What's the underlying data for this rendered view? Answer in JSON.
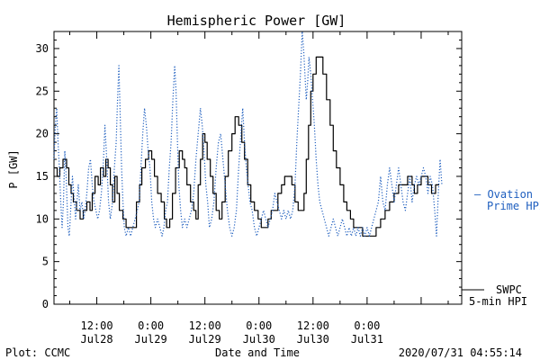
{
  "chart_data": {
    "type": "line",
    "title": "Hemispheric Power [GW]",
    "ylabel": "P [GW]",
    "xlabel": "Date and Time",
    "ylim": [
      0,
      32
    ],
    "yticks": [
      0,
      5,
      10,
      15,
      20,
      25,
      30
    ],
    "x_range_hours": [
      2.5,
      93.0
    ],
    "xticks": [
      {
        "hour": 12,
        "time": "12:00",
        "date": "Jul28"
      },
      {
        "hour": 24,
        "time": "0:00",
        "date": "Jul29"
      },
      {
        "hour": 36,
        "time": "12:00",
        "date": "Jul29"
      },
      {
        "hour": 48,
        "time": "0:00",
        "date": "Jul30"
      },
      {
        "hour": 60,
        "time": "12:00",
        "date": "Jul30"
      },
      {
        "hour": 72,
        "time": "0:00",
        "date": "Jul31"
      }
    ],
    "grid": false,
    "series": [
      {
        "name": "SWPC 5-min HPI",
        "label_lines": [
          "SWPC",
          "5-min HPI"
        ],
        "color": "#000000",
        "style": "solid",
        "points": [
          [
            2.5,
            16
          ],
          [
            3.2,
            15
          ],
          [
            3.8,
            16
          ],
          [
            4.5,
            17
          ],
          [
            5.3,
            16
          ],
          [
            5.8,
            14
          ],
          [
            6.3,
            13
          ],
          [
            6.8,
            12
          ],
          [
            7.5,
            11
          ],
          [
            8.3,
            10
          ],
          [
            9,
            11
          ],
          [
            9.8,
            12
          ],
          [
            10.5,
            11
          ],
          [
            11,
            13
          ],
          [
            11.6,
            15
          ],
          [
            12.3,
            14
          ],
          [
            12.8,
            16
          ],
          [
            13.5,
            15
          ],
          [
            14,
            17
          ],
          [
            14.5,
            16
          ],
          [
            15,
            14
          ],
          [
            15.5,
            12
          ],
          [
            16,
            15
          ],
          [
            16.5,
            13
          ],
          [
            17,
            11
          ],
          [
            17.8,
            10
          ],
          [
            18.5,
            9
          ],
          [
            19.3,
            9
          ],
          [
            20,
            9
          ],
          [
            20.8,
            12
          ],
          [
            21.5,
            14
          ],
          [
            22,
            16
          ],
          [
            22.8,
            17
          ],
          [
            23.5,
            18
          ],
          [
            24.2,
            17
          ],
          [
            24.8,
            15
          ],
          [
            25.5,
            13
          ],
          [
            26.3,
            12
          ],
          [
            27,
            10
          ],
          [
            27.5,
            9
          ],
          [
            28.2,
            10
          ],
          [
            28.8,
            13
          ],
          [
            29.5,
            16
          ],
          [
            30.3,
            18
          ],
          [
            31,
            17
          ],
          [
            31.5,
            16
          ],
          [
            32,
            14
          ],
          [
            32.8,
            12
          ],
          [
            33.5,
            11
          ],
          [
            34,
            10
          ],
          [
            34.5,
            14
          ],
          [
            35,
            17
          ],
          [
            35.5,
            20
          ],
          [
            36,
            19
          ],
          [
            36.5,
            17
          ],
          [
            37.2,
            15
          ],
          [
            37.8,
            13
          ],
          [
            38.5,
            11
          ],
          [
            39.2,
            10
          ],
          [
            39.8,
            12
          ],
          [
            40.5,
            15
          ],
          [
            41.2,
            18
          ],
          [
            42,
            20
          ],
          [
            42.7,
            22
          ],
          [
            43.5,
            21
          ],
          [
            44.2,
            19
          ],
          [
            44.8,
            17
          ],
          [
            45.5,
            14
          ],
          [
            46.2,
            12
          ],
          [
            47,
            11
          ],
          [
            47.8,
            10
          ],
          [
            48.5,
            9
          ],
          [
            49.3,
            9
          ],
          [
            50,
            10
          ],
          [
            50.7,
            11
          ],
          [
            51.5,
            11
          ],
          [
            52.2,
            13
          ],
          [
            53,
            14
          ],
          [
            53.7,
            15
          ],
          [
            54.5,
            15
          ],
          [
            55.3,
            14
          ],
          [
            56,
            12
          ],
          [
            56.7,
            11
          ],
          [
            57.3,
            11
          ],
          [
            58,
            13
          ],
          [
            58.5,
            17
          ],
          [
            59,
            21
          ],
          [
            59.5,
            25
          ],
          [
            60,
            27
          ],
          [
            60.7,
            29
          ],
          [
            61.5,
            29
          ],
          [
            62.2,
            27
          ],
          [
            63,
            24
          ],
          [
            63.8,
            21
          ],
          [
            64.5,
            18
          ],
          [
            65.2,
            16
          ],
          [
            66,
            14
          ],
          [
            66.8,
            12
          ],
          [
            67.5,
            11
          ],
          [
            68.3,
            10
          ],
          [
            69,
            9
          ],
          [
            70,
            9
          ],
          [
            71,
            8
          ],
          [
            72,
            8
          ],
          [
            73,
            8
          ],
          [
            74,
            9
          ],
          [
            75,
            10
          ],
          [
            76,
            11
          ],
          [
            77,
            12
          ],
          [
            78,
            13
          ],
          [
            79,
            14
          ],
          [
            80,
            14
          ],
          [
            81,
            15
          ],
          [
            82,
            14
          ],
          [
            82.5,
            13
          ],
          [
            83.2,
            14
          ],
          [
            84,
            15
          ],
          [
            84.8,
            15
          ],
          [
            85.5,
            14
          ],
          [
            86.3,
            13
          ],
          [
            87.2,
            14
          ],
          [
            88,
            14
          ]
        ]
      },
      {
        "name": "Ovation Prime HPI",
        "label_lines": [
          "– Ovation",
          "Prime HPI"
        ],
        "color": "#1f5fbf",
        "style": "dotted",
        "points": [
          [
            2.5,
            17
          ],
          [
            2.8,
            21
          ],
          [
            3.1,
            23
          ],
          [
            3.4,
            19
          ],
          [
            3.7,
            16
          ],
          [
            4,
            12
          ],
          [
            4.3,
            9
          ],
          [
            4.6,
            12
          ],
          [
            4.9,
            18
          ],
          [
            5.2,
            15
          ],
          [
            5.6,
            9
          ],
          [
            5.9,
            8
          ],
          [
            6.2,
            11
          ],
          [
            6.6,
            15
          ],
          [
            6.9,
            13
          ],
          [
            7.3,
            10
          ],
          [
            7.6,
            12
          ],
          [
            7.9,
            14
          ],
          [
            8.3,
            11
          ],
          [
            8.7,
            12
          ],
          [
            9.1,
            10
          ],
          [
            9.4,
            11
          ],
          [
            9.8,
            13
          ],
          [
            10.2,
            16
          ],
          [
            10.6,
            17
          ],
          [
            11,
            14
          ],
          [
            11.4,
            12
          ],
          [
            11.8,
            11
          ],
          [
            12.2,
            10
          ],
          [
            12.6,
            11
          ],
          [
            13,
            13
          ],
          [
            13.4,
            16
          ],
          [
            13.8,
            21
          ],
          [
            14.2,
            17
          ],
          [
            14.6,
            12
          ],
          [
            15,
            10
          ],
          [
            15.5,
            12
          ],
          [
            15.9,
            16
          ],
          [
            16.3,
            19
          ],
          [
            16.6,
            24
          ],
          [
            16.9,
            28
          ],
          [
            17.2,
            22
          ],
          [
            17.5,
            16
          ],
          [
            17.8,
            12
          ],
          [
            18.1,
            9
          ],
          [
            18.5,
            8
          ],
          [
            19,
            9
          ],
          [
            19.5,
            8
          ],
          [
            20,
            9
          ],
          [
            20.5,
            10
          ],
          [
            21,
            11
          ],
          [
            21.4,
            12
          ],
          [
            21.8,
            16
          ],
          [
            22.2,
            20
          ],
          [
            22.6,
            23
          ],
          [
            23,
            21
          ],
          [
            23.4,
            18
          ],
          [
            23.8,
            16
          ],
          [
            24.2,
            12
          ],
          [
            24.6,
            10
          ],
          [
            25,
            9
          ],
          [
            25.5,
            10
          ],
          [
            26,
            9
          ],
          [
            26.5,
            8
          ],
          [
            26.9,
            9
          ],
          [
            27.3,
            11
          ],
          [
            27.7,
            12
          ],
          [
            28.1,
            16
          ],
          [
            28.5,
            19
          ],
          [
            28.9,
            24
          ],
          [
            29.3,
            28
          ],
          [
            29.6,
            25
          ],
          [
            29.9,
            19
          ],
          [
            30.2,
            14
          ],
          [
            30.6,
            11
          ],
          [
            31,
            9
          ],
          [
            31.5,
            10
          ],
          [
            32,
            9
          ],
          [
            32.5,
            10
          ],
          [
            33,
            11
          ],
          [
            33.5,
            13
          ],
          [
            34,
            17
          ],
          [
            34.5,
            20
          ],
          [
            35,
            23
          ],
          [
            35.4,
            21
          ],
          [
            35.8,
            18
          ],
          [
            36.2,
            14
          ],
          [
            36.6,
            12
          ],
          [
            37,
            9
          ],
          [
            37.5,
            10
          ],
          [
            38,
            12
          ],
          [
            38.5,
            16
          ],
          [
            39,
            19
          ],
          [
            39.5,
            20
          ],
          [
            40,
            17
          ],
          [
            40.5,
            14
          ],
          [
            41,
            11
          ],
          [
            41.5,
            9
          ],
          [
            42,
            8
          ],
          [
            42.5,
            9
          ],
          [
            43,
            11
          ],
          [
            43.5,
            16
          ],
          [
            44,
            20
          ],
          [
            44.4,
            23
          ],
          [
            44.8,
            19
          ],
          [
            45.2,
            16
          ],
          [
            45.6,
            14
          ],
          [
            46,
            12
          ],
          [
            46.5,
            11
          ],
          [
            47,
            9
          ],
          [
            47.5,
            8
          ],
          [
            48,
            9
          ],
          [
            48.5,
            10
          ],
          [
            49,
            11
          ],
          [
            49.5,
            10
          ],
          [
            50,
            9
          ],
          [
            50.5,
            10
          ],
          [
            51,
            11
          ],
          [
            51.5,
            13
          ],
          [
            52,
            12
          ],
          [
            52.5,
            11
          ],
          [
            53,
            10
          ],
          [
            53.5,
            11
          ],
          [
            54,
            10
          ],
          [
            54.5,
            11
          ],
          [
            55,
            10
          ],
          [
            55.5,
            11
          ],
          [
            56,
            14
          ],
          [
            56.4,
            19
          ],
          [
            56.8,
            23
          ],
          [
            57.2,
            27
          ],
          [
            57.6,
            32
          ],
          [
            57.9,
            30
          ],
          [
            58.2,
            27
          ],
          [
            58.5,
            24
          ],
          [
            58.8,
            26
          ],
          [
            59.1,
            29
          ],
          [
            59.5,
            27
          ],
          [
            59.9,
            24
          ],
          [
            60.3,
            21
          ],
          [
            60.7,
            17
          ],
          [
            61.1,
            14
          ],
          [
            61.5,
            12
          ],
          [
            62,
            11
          ],
          [
            62.5,
            10
          ],
          [
            63,
            9
          ],
          [
            63.5,
            8
          ],
          [
            64,
            9
          ],
          [
            64.5,
            10
          ],
          [
            65,
            9
          ],
          [
            65.5,
            8
          ],
          [
            66,
            9
          ],
          [
            66.5,
            10
          ],
          [
            67,
            9
          ],
          [
            67.5,
            8
          ],
          [
            68,
            9
          ],
          [
            68.5,
            8
          ],
          [
            69,
            9
          ],
          [
            69.5,
            8
          ],
          [
            70,
            9
          ],
          [
            70.5,
            8
          ],
          [
            71,
            9
          ],
          [
            71.5,
            8
          ],
          [
            72,
            9
          ],
          [
            72.5,
            8
          ],
          [
            73,
            9
          ],
          [
            73.5,
            10
          ],
          [
            74,
            11
          ],
          [
            74.5,
            12
          ],
          [
            75,
            15
          ],
          [
            75.5,
            12
          ],
          [
            76,
            11
          ],
          [
            76.5,
            14
          ],
          [
            77,
            16
          ],
          [
            77.5,
            14
          ],
          [
            78,
            12
          ],
          [
            78.5,
            14
          ],
          [
            79,
            16
          ],
          [
            79.5,
            14
          ],
          [
            80,
            12
          ],
          [
            80.5,
            11
          ],
          [
            81,
            13
          ],
          [
            81.5,
            15
          ],
          [
            82,
            12
          ],
          [
            82.5,
            14
          ],
          [
            83,
            15
          ],
          [
            83.5,
            14
          ],
          [
            84,
            15
          ],
          [
            84.5,
            16
          ],
          [
            85,
            15
          ],
          [
            85.5,
            13
          ],
          [
            86,
            15
          ],
          [
            86.5,
            14
          ],
          [
            87,
            11
          ],
          [
            87.4,
            8
          ],
          [
            87.8,
            13
          ],
          [
            88.2,
            17
          ],
          [
            88.6,
            14
          ]
        ]
      }
    ]
  },
  "footer": {
    "left": "Plot: CCMC",
    "center": "Date and Time",
    "right": "2020/07/31 04:55:14"
  }
}
